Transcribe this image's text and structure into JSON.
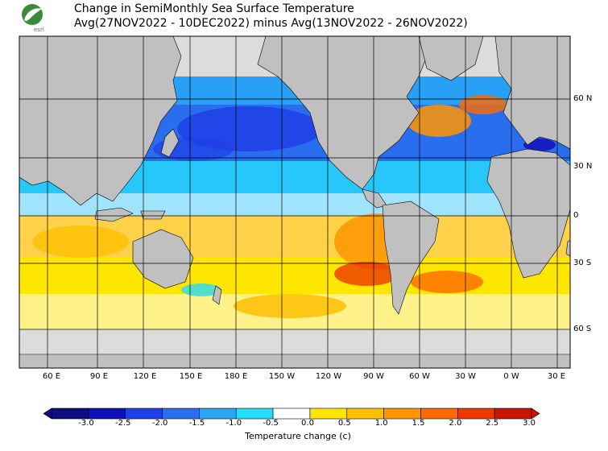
{
  "header": {
    "title_line1": "Change in SemiMonthly Sea Surface Temperature",
    "title_line2": "Avg(27NOV2022 - 10DEC2022) minus Avg(13NOV2022 - 26NOV2022)",
    "logo_text": "esrl"
  },
  "map": {
    "lat_labels": [
      "60 N",
      "30 N",
      "0",
      "30 S",
      "60 S"
    ],
    "lon_labels": [
      "60 E",
      "90 E",
      "120 E",
      "150 E",
      "180 E",
      "150 W",
      "120 W",
      "90 W",
      "60 W",
      "30 W",
      "0 W",
      "30 E"
    ],
    "land_color": "#c0c0c0",
    "ice_color": "#dcdcdc"
  },
  "colorbar": {
    "label": "Temperature change  (c)",
    "tick_values": [
      "-3.0",
      "-2.5",
      "-2.0",
      "-1.5",
      "-1.0",
      "-0.5",
      "0.0",
      "0.5",
      "1.0",
      "1.5",
      "2.0",
      "2.5",
      "3.0"
    ],
    "colors": [
      "#0d0d80",
      "#1010b8",
      "#1f3fe6",
      "#2a6ef0",
      "#2aa6f5",
      "#27dcf9",
      "#ffffff",
      "#ffe600",
      "#ffc000",
      "#ff9500",
      "#ff6a00",
      "#ee3800",
      "#c81500"
    ]
  }
}
